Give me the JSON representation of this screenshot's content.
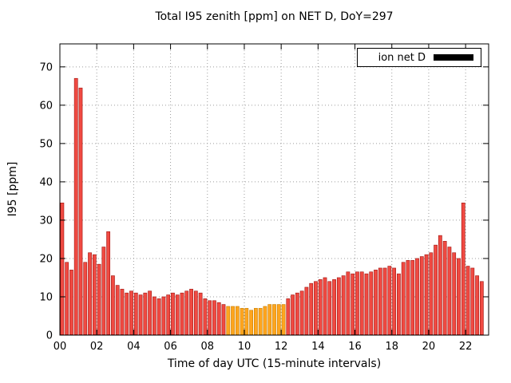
{
  "chart_data": {
    "type": "bar",
    "title": "Total I95 zenith [ppm] on NET D, DoY=297",
    "xlabel": "Time of day UTC (15-minute intervals)",
    "ylabel": "I95 [ppm]",
    "start_time": "00:00",
    "interval_minutes": 15,
    "xlim": [
      0,
      23.25
    ],
    "ylim": [
      0,
      76
    ],
    "xticks": {
      "values": [
        0,
        2,
        4,
        6,
        8,
        10,
        12,
        14,
        16,
        18,
        20,
        22
      ],
      "labels": [
        "00",
        "02",
        "04",
        "06",
        "08",
        "10",
        "12",
        "14",
        "16",
        "18",
        "20",
        "22"
      ]
    },
    "yticks": [
      0,
      10,
      20,
      30,
      40,
      50,
      60,
      70
    ],
    "grid": true,
    "legend": {
      "label": "ion net D",
      "swatch_color": "#000000",
      "position": "top-right"
    },
    "colors": {
      "bar_red": "#f04a42",
      "bar_red_border": "#a01510",
      "bar_orange": "#ffa51e",
      "bar_orange_border": "#c87f00",
      "grid": "#9c9c9c",
      "axis": "#000000"
    },
    "highlight_orange_index_range": [
      36,
      48
    ],
    "values": [
      34.5,
      19,
      17,
      67,
      64.5,
      19,
      21.5,
      21,
      18.5,
      23,
      27,
      15.5,
      13,
      12,
      11,
      11.5,
      11,
      10.5,
      11,
      11.5,
      10,
      9.5,
      10,
      10.5,
      11,
      10.5,
      11,
      11.5,
      12,
      11.5,
      11,
      9.5,
      9,
      9,
      8.5,
      8,
      7.5,
      7.5,
      7.5,
      7,
      7,
      6.5,
      7,
      7,
      7.5,
      8,
      8,
      8,
      8,
      9.5,
      10.5,
      11,
      11.5,
      12.5,
      13.5,
      14,
      14.5,
      15,
      14,
      14.5,
      15,
      15.5,
      16.5,
      16,
      16.5,
      16.5,
      16,
      16.5,
      17,
      17.5,
      17.5,
      18,
      17.5,
      16,
      19,
      19.5,
      19.5,
      20,
      20.5,
      21,
      21.5,
      23.5,
      26,
      24.5,
      23,
      21.5,
      20,
      34.5,
      18,
      17.5,
      15.5,
      14
    ]
  }
}
